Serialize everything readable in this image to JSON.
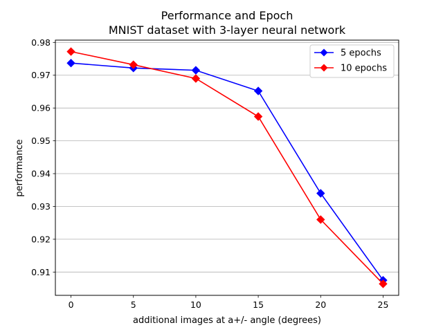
{
  "chart_data": {
    "type": "line",
    "title": "Performance and Epoch",
    "subtitle": "MNIST dataset with 3-layer neural network",
    "xlabel": "additional images at a+/- angle (degrees)",
    "ylabel": "performance",
    "x": [
      0,
      5,
      10,
      15,
      20,
      25
    ],
    "xticks": [
      "0",
      "5",
      "10",
      "15",
      "20",
      "25"
    ],
    "yticks": [
      "0.91",
      "0.92",
      "0.93",
      "0.94",
      "0.95",
      "0.96",
      "0.97",
      "0.98"
    ],
    "xlim": [
      -1.25,
      26.25
    ],
    "ylim": [
      0.9029,
      0.9807
    ],
    "grid": "horizontal",
    "legend_position": "top-right",
    "series": [
      {
        "name": "5 epochs",
        "color": "#0000ff",
        "marker": "diamond",
        "values": [
          0.9737,
          0.9722,
          0.9715,
          0.9652,
          0.934,
          0.9075
        ]
      },
      {
        "name": "10 epochs",
        "color": "#ff0000",
        "marker": "diamond",
        "values": [
          0.9772,
          0.9732,
          0.969,
          0.9574,
          0.926,
          0.9064
        ]
      }
    ]
  }
}
